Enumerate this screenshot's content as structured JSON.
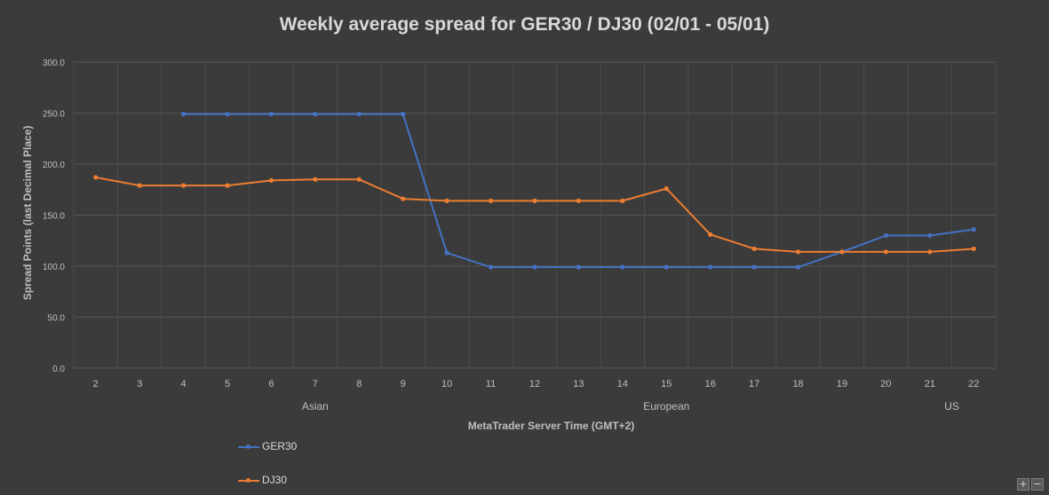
{
  "chart_data": {
    "type": "line",
    "title": "Weekly average spread for GER30 / DJ30 (02/01 - 05/01)",
    "xlabel": "MetaTrader Server Time (GMT+2)",
    "ylabel": "Spread Points  (last Decimal Place)",
    "ylim": [
      0,
      300
    ],
    "y_ticks": [
      "0.0",
      "50.0",
      "100.0",
      "150.0",
      "200.0",
      "250.0",
      "300.0"
    ],
    "categories": [
      "2",
      "3",
      "4",
      "5",
      "6",
      "7",
      "8",
      "9",
      "10",
      "11",
      "12",
      "13",
      "14",
      "15",
      "16",
      "17",
      "18",
      "19",
      "20",
      "21",
      "22"
    ],
    "region_labels": [
      {
        "label": "Asian",
        "center_category": 5
      },
      {
        "label": "European",
        "center_category": 13
      },
      {
        "label": "US",
        "center_category": 19.5
      }
    ],
    "series": [
      {
        "name": "GER30",
        "color": "#4472c4",
        "values": [
          null,
          null,
          249,
          249,
          249,
          249,
          249,
          249,
          113,
          99,
          99,
          99,
          99,
          99,
          99,
          99,
          99,
          114,
          130,
          130,
          136
        ]
      },
      {
        "name": "DJ30",
        "color": "#ed7d31",
        "values": [
          187,
          179,
          179,
          179,
          184,
          185,
          185,
          166,
          164,
          164,
          164,
          164,
          164,
          176,
          131,
          117,
          114,
          114,
          114,
          114,
          117
        ]
      }
    ],
    "grid": true,
    "legend_position": "bottom-left"
  },
  "controls": {
    "zoom_in": "+",
    "zoom_out": "−"
  }
}
